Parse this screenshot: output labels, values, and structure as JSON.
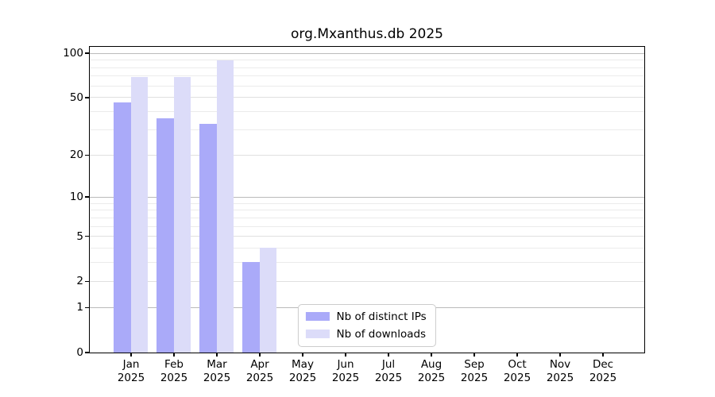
{
  "chart_data": {
    "type": "bar",
    "title": "org.Mxanthus.db 2025",
    "scale": "log1p",
    "grid": "on",
    "legend_position": "lower center",
    "categories": [
      "Jan",
      "Feb",
      "Mar",
      "Apr",
      "May",
      "Jun",
      "Jul",
      "Aug",
      "Sep",
      "Oct",
      "Nov",
      "Dec"
    ],
    "x_year_label": "2025",
    "y_ticks": [
      100,
      50,
      20,
      10,
      5,
      2,
      1,
      0
    ],
    "ylim": [
      0,
      110.4
    ],
    "series": [
      {
        "name": "Nb of distinct IPs",
        "color": "#aaaaf9",
        "values": [
          46,
          36,
          33,
          3,
          0,
          0,
          0,
          0,
          0,
          0,
          0,
          0
        ]
      },
      {
        "name": "Nb of downloads",
        "color": "#dcdcf9",
        "values": [
          69,
          69,
          89,
          4,
          0,
          0,
          0,
          0,
          0,
          0,
          0,
          0
        ]
      }
    ]
  },
  "colors": {
    "background": "#ffffff",
    "spine": "#000000",
    "grid_major": "#bbbbbb",
    "grid_labeled": "#e0e0e0",
    "grid_minor": "#ebebeb",
    "legend_border": "#cccccc"
  }
}
